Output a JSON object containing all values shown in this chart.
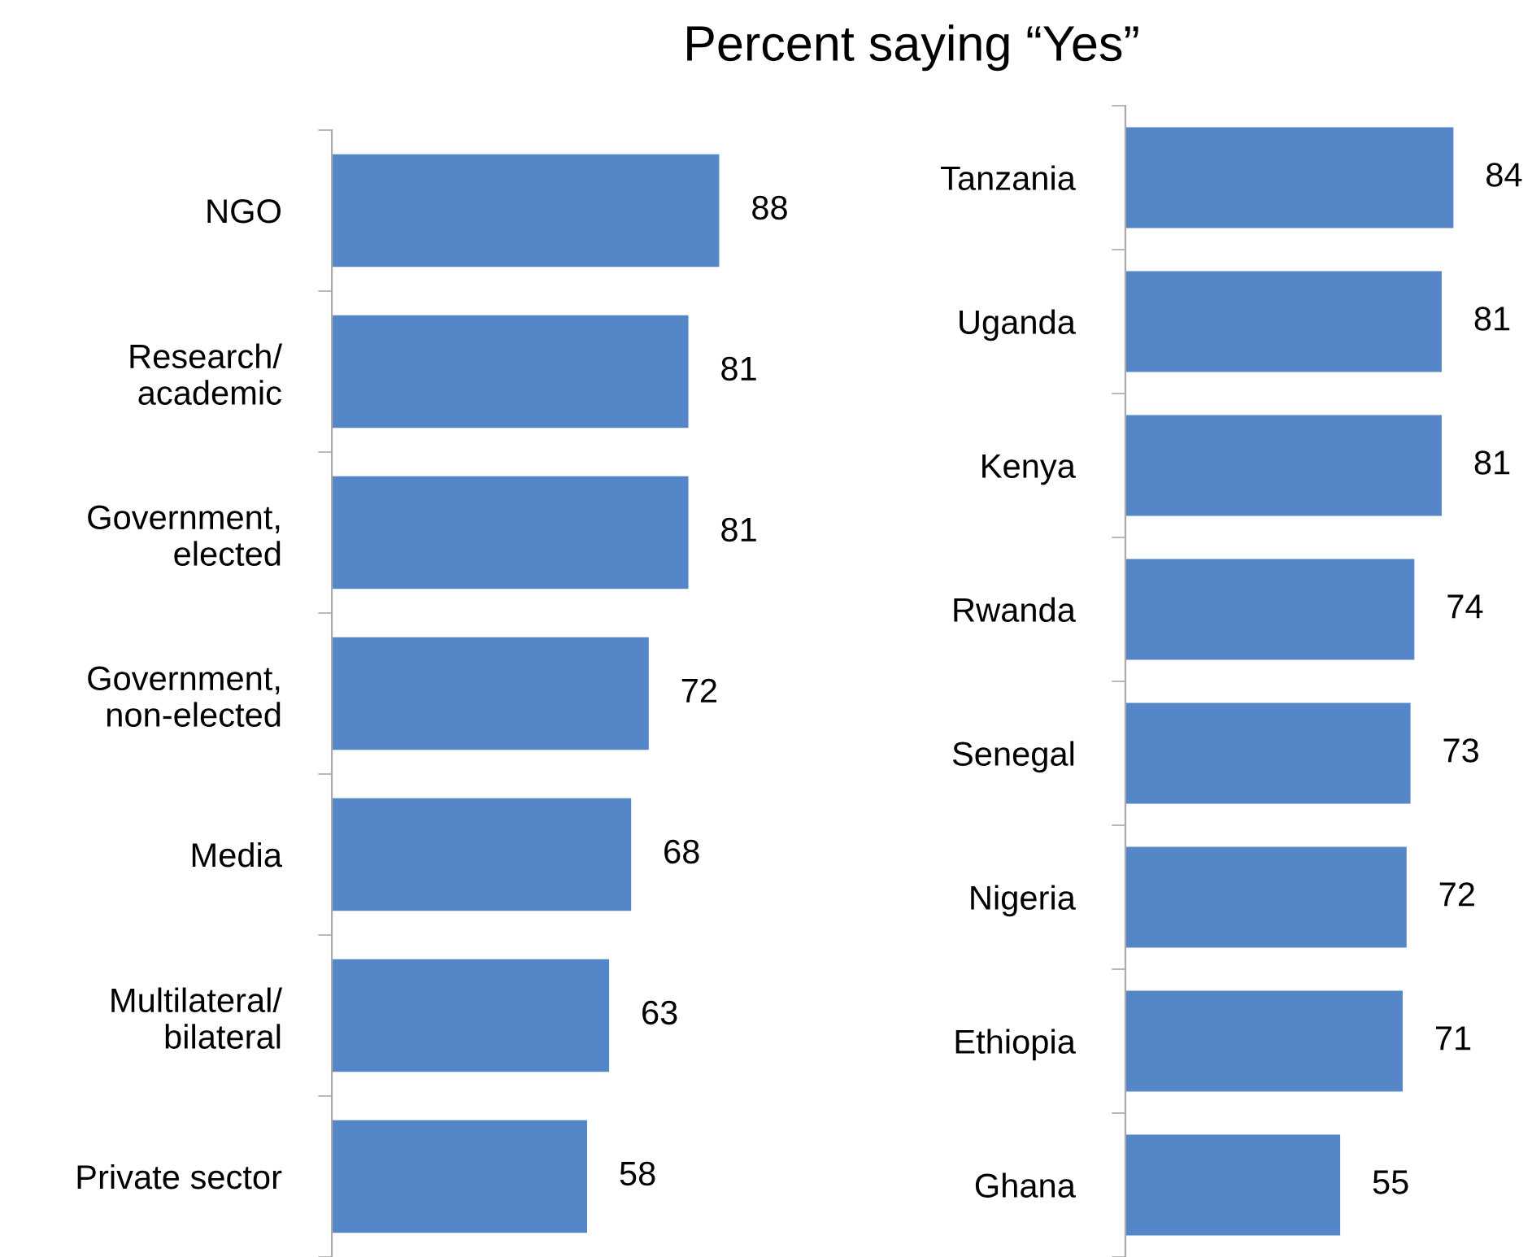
{
  "chart_data": [
    {
      "type": "bar",
      "orientation": "horizontal",
      "title": "Percent saying “Yes”",
      "categories": [
        "NGO",
        "Research/\nacademic",
        "Government,\nelected",
        "Government,\nnon-elected",
        "Media",
        "Multilateral/\nbilateral",
        "Private sector"
      ],
      "series": [
        {
          "color": "#5587c8",
          "values": [
            88,
            81,
            81,
            72,
            68,
            63,
            58
          ]
        }
      ],
      "data_labels": true,
      "grid": false,
      "legend": false,
      "tick_labels": "y"
    },
    {
      "type": "bar",
      "orientation": "horizontal",
      "categories": [
        "Tanzania",
        "Uganda",
        "Kenya",
        "Rwanda",
        "Senegal",
        "Nigeria",
        "Ethiopia",
        "Ghana"
      ],
      "series": [
        {
          "color": "#5587c8",
          "values": [
            84,
            81,
            81,
            74,
            73,
            72,
            71,
            55
          ]
        }
      ],
      "data_labels": true,
      "grid": false,
      "legend": false,
      "tick_labels": "y"
    }
  ]
}
